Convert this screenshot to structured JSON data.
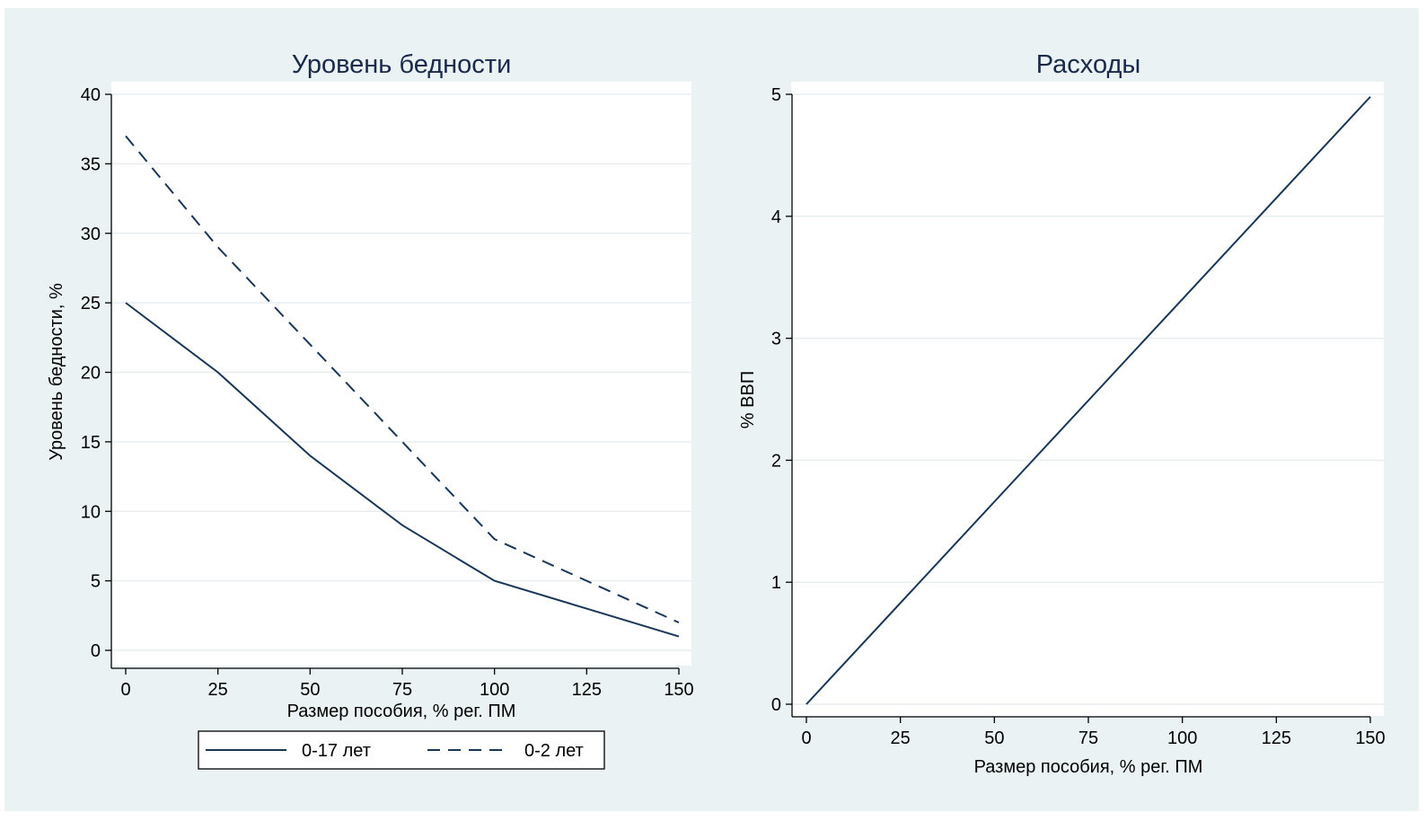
{
  "chart_data": [
    {
      "type": "line",
      "title": "Уровень бедности",
      "xlabel": "Размер пособия, % рег. ПМ",
      "ylabel": "Уровень бедности, %",
      "x": [
        0,
        25,
        50,
        75,
        100,
        125,
        150
      ],
      "xticks": [
        "0",
        "25",
        "50",
        "75",
        "100",
        "125",
        "150"
      ],
      "yticks": [
        "0",
        "5",
        "10",
        "15",
        "20",
        "25",
        "30",
        "35",
        "40"
      ],
      "xlim": [
        0,
        150
      ],
      "ylim": [
        0,
        40
      ],
      "grid": true,
      "legend_position": "bottom",
      "series": [
        {
          "name": "0-17 лет",
          "style": "solid",
          "values": [
            25,
            20,
            14,
            9,
            5,
            3,
            1
          ]
        },
        {
          "name": "0-2 лет",
          "style": "dashed",
          "values": [
            37,
            29,
            22,
            15,
            8,
            5,
            2
          ]
        }
      ]
    },
    {
      "type": "line",
      "title": "Расходы",
      "xlabel": "Размер пособия, % рег. ПМ",
      "ylabel": "% ВВП",
      "x": [
        0,
        150
      ],
      "xticks": [
        "0",
        "25",
        "50",
        "75",
        "100",
        "125",
        "150"
      ],
      "yticks": [
        "0",
        "1",
        "2",
        "3",
        "4",
        "5"
      ],
      "xlim": [
        0,
        150
      ],
      "ylim": [
        0,
        5
      ],
      "grid": true,
      "series": [
        {
          "style": "solid",
          "values": [
            0,
            4.98
          ]
        }
      ]
    }
  ],
  "colors": {
    "background": "#eaf2f3",
    "plot_area": "#ffffff",
    "line": "#1a3657",
    "grid": "#e8eef0"
  }
}
